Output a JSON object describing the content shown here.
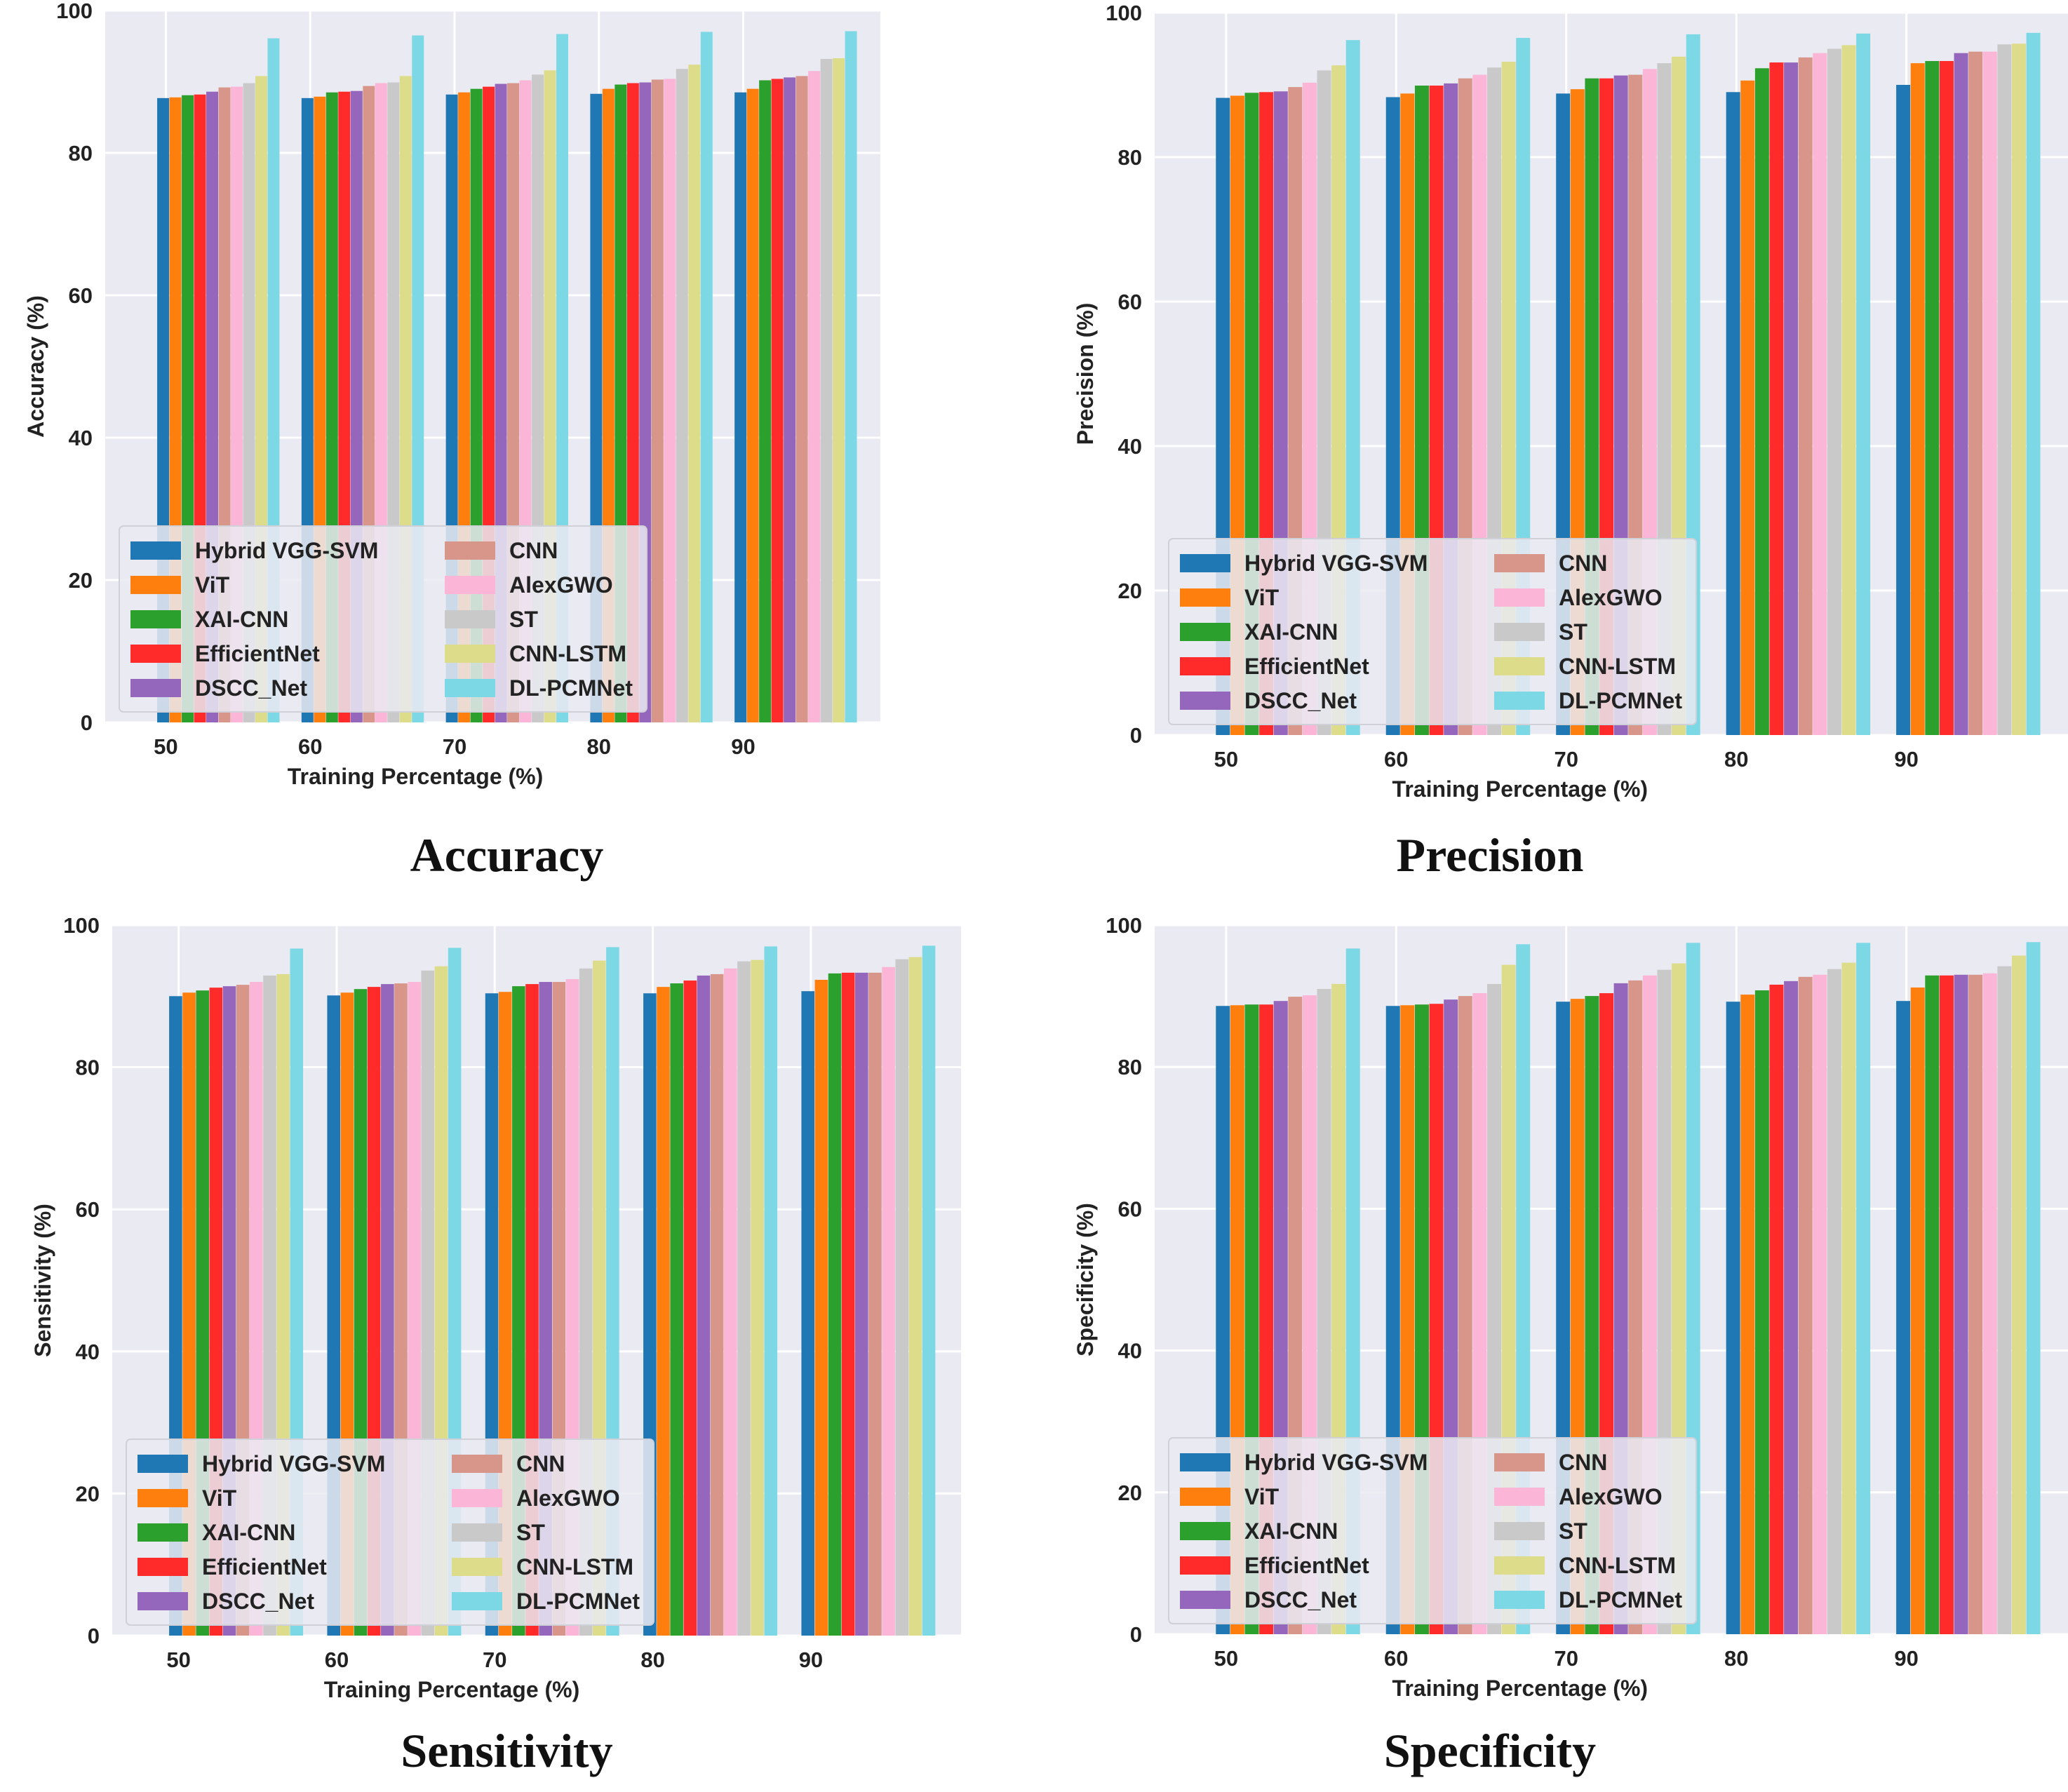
{
  "palette": {
    "Hybrid VGG-SVM": "#1f77b4",
    "ViT": "#ff7f0e",
    "XAI-CNN": "#2ca02c",
    "EfficientNet": "#ff2b2b",
    "DSCC_Net": "#9467bd",
    "CNN": "#d8968b",
    "AlexGWO": "#fbb5d6",
    "ST": "#c9c9c9",
    "CNN-LSTM": "#dcdc8a",
    "DL-PCMNet": "#7dd8e6"
  },
  "plot_background": "#eaeaf2",
  "chart_data": [
    {
      "type": "bar",
      "caption": "Accuracy",
      "xlabel": "Training Percentage (%)",
      "ylabel": "Accuracy (%)",
      "ylim": [
        0,
        100
      ],
      "yticks": [
        "0",
        "20",
        "40",
        "60",
        "80",
        "100"
      ],
      "categories": [
        "50",
        "60",
        "70",
        "80",
        "90"
      ],
      "legend_location": "lower-left",
      "series": [
        {
          "name": "Hybrid VGG-SVM",
          "values": [
            87.7,
            87.7,
            88.2,
            88.3,
            88.5
          ]
        },
        {
          "name": "ViT",
          "values": [
            87.8,
            87.9,
            88.5,
            89.0,
            89.0
          ]
        },
        {
          "name": "XAI-CNN",
          "values": [
            88.1,
            88.5,
            89.0,
            89.6,
            90.2
          ]
        },
        {
          "name": "EfficientNet",
          "values": [
            88.2,
            88.6,
            89.3,
            89.8,
            90.4
          ]
        },
        {
          "name": "DSCC_Net",
          "values": [
            88.6,
            88.7,
            89.7,
            89.9,
            90.6
          ]
        },
        {
          "name": "CNN",
          "values": [
            89.2,
            89.4,
            89.8,
            90.3,
            90.8
          ]
        },
        {
          "name": "AlexGWO",
          "values": [
            89.3,
            89.8,
            90.2,
            90.4,
            91.5
          ]
        },
        {
          "name": "ST",
          "values": [
            89.8,
            89.9,
            91.0,
            91.8,
            93.2
          ]
        },
        {
          "name": "CNN-LSTM",
          "values": [
            90.8,
            90.8,
            91.6,
            92.4,
            93.3
          ]
        },
        {
          "name": "DL-PCMNet",
          "values": [
            96.1,
            96.5,
            96.7,
            97.0,
            97.1
          ]
        }
      ]
    },
    {
      "type": "bar",
      "caption": "Precision",
      "xlabel": "Training Percentage (%)",
      "ylabel": "Precision (%)",
      "ylim": [
        0,
        100
      ],
      "yticks": [
        "0",
        "20",
        "40",
        "60",
        "80",
        "100"
      ],
      "categories": [
        "50",
        "60",
        "70",
        "80",
        "90"
      ],
      "legend_location": "lower-left",
      "series": [
        {
          "name": "Hybrid VGG-SVM",
          "values": [
            88.2,
            88.3,
            88.8,
            89.0,
            90.0
          ]
        },
        {
          "name": "ViT",
          "values": [
            88.5,
            88.8,
            89.4,
            90.6,
            93.0
          ]
        },
        {
          "name": "XAI-CNN",
          "values": [
            88.9,
            89.9,
            90.9,
            92.3,
            93.3
          ]
        },
        {
          "name": "EfficientNet",
          "values": [
            89.0,
            89.9,
            90.9,
            93.1,
            93.3
          ]
        },
        {
          "name": "DSCC_Net",
          "values": [
            89.1,
            90.2,
            91.3,
            93.1,
            94.4
          ]
        },
        {
          "name": "CNN",
          "values": [
            89.7,
            90.9,
            91.4,
            93.8,
            94.6
          ]
        },
        {
          "name": "AlexGWO",
          "values": [
            90.3,
            91.4,
            92.2,
            94.4,
            94.6
          ]
        },
        {
          "name": "ST",
          "values": [
            92.0,
            92.4,
            93.0,
            95.0,
            95.6
          ]
        },
        {
          "name": "CNN-LSTM",
          "values": [
            92.7,
            93.2,
            93.9,
            95.5,
            95.7
          ]
        },
        {
          "name": "DL-PCMNet",
          "values": [
            96.2,
            96.5,
            97.0,
            97.1,
            97.2
          ]
        }
      ]
    },
    {
      "type": "bar",
      "caption": "Sensitivity",
      "xlabel": "Training Percentage (%)",
      "ylabel": "Sensitivity (%)",
      "ylim": [
        0,
        100
      ],
      "yticks": [
        "0",
        "20",
        "40",
        "60",
        "80",
        "100"
      ],
      "categories": [
        "50",
        "60",
        "70",
        "80",
        "90"
      ],
      "legend_location": "lower-left",
      "series": [
        {
          "name": "Hybrid VGG-SVM",
          "values": [
            90.0,
            90.1,
            90.4,
            90.4,
            90.7
          ]
        },
        {
          "name": "ViT",
          "values": [
            90.5,
            90.5,
            90.6,
            91.3,
            92.3
          ]
        },
        {
          "name": "XAI-CNN",
          "values": [
            90.8,
            91.0,
            91.4,
            91.8,
            93.2
          ]
        },
        {
          "name": "EfficientNet",
          "values": [
            91.2,
            91.3,
            91.7,
            92.2,
            93.3
          ]
        },
        {
          "name": "DSCC_Net",
          "values": [
            91.4,
            91.7,
            92.0,
            92.9,
            93.3
          ]
        },
        {
          "name": "CNN",
          "values": [
            91.6,
            91.8,
            92.0,
            93.1,
            93.3
          ]
        },
        {
          "name": "AlexGWO",
          "values": [
            92.0,
            92.0,
            92.4,
            93.9,
            94.1
          ]
        },
        {
          "name": "ST",
          "values": [
            92.9,
            93.6,
            93.9,
            94.9,
            95.2
          ]
        },
        {
          "name": "CNN-LSTM",
          "values": [
            93.1,
            94.2,
            95.0,
            95.1,
            95.5
          ]
        },
        {
          "name": "DL-PCMNet",
          "values": [
            96.7,
            96.8,
            96.9,
            97.0,
            97.1
          ]
        }
      ]
    },
    {
      "type": "bar",
      "caption": "Specificity",
      "xlabel": "Training Percentage (%)",
      "ylabel": "Specificity (%)",
      "ylim": [
        0,
        100
      ],
      "yticks": [
        "0",
        "20",
        "40",
        "60",
        "80",
        "100"
      ],
      "categories": [
        "50",
        "60",
        "70",
        "80",
        "90"
      ],
      "legend_location": "lower-left",
      "series": [
        {
          "name": "Hybrid VGG-SVM",
          "values": [
            88.6,
            88.6,
            89.2,
            89.2,
            89.3
          ]
        },
        {
          "name": "ViT",
          "values": [
            88.7,
            88.7,
            89.6,
            90.2,
            91.2
          ]
        },
        {
          "name": "XAI-CNN",
          "values": [
            88.8,
            88.8,
            90.0,
            90.8,
            92.9
          ]
        },
        {
          "name": "EfficientNet",
          "values": [
            88.8,
            88.9,
            90.4,
            91.6,
            92.9
          ]
        },
        {
          "name": "DSCC_Net",
          "values": [
            89.3,
            89.5,
            91.8,
            92.1,
            93.0
          ]
        },
        {
          "name": "CNN",
          "values": [
            89.9,
            90.0,
            92.2,
            92.7,
            93.0
          ]
        },
        {
          "name": "AlexGWO",
          "values": [
            90.1,
            90.4,
            92.9,
            93.0,
            93.2
          ]
        },
        {
          "name": "ST",
          "values": [
            91.0,
            91.7,
            93.7,
            93.8,
            94.2
          ]
        },
        {
          "name": "CNN-LSTM",
          "values": [
            91.7,
            94.4,
            94.6,
            94.7,
            95.7
          ]
        },
        {
          "name": "DL-PCMNet",
          "values": [
            96.7,
            97.3,
            97.5,
            97.5,
            97.6
          ]
        }
      ]
    }
  ]
}
